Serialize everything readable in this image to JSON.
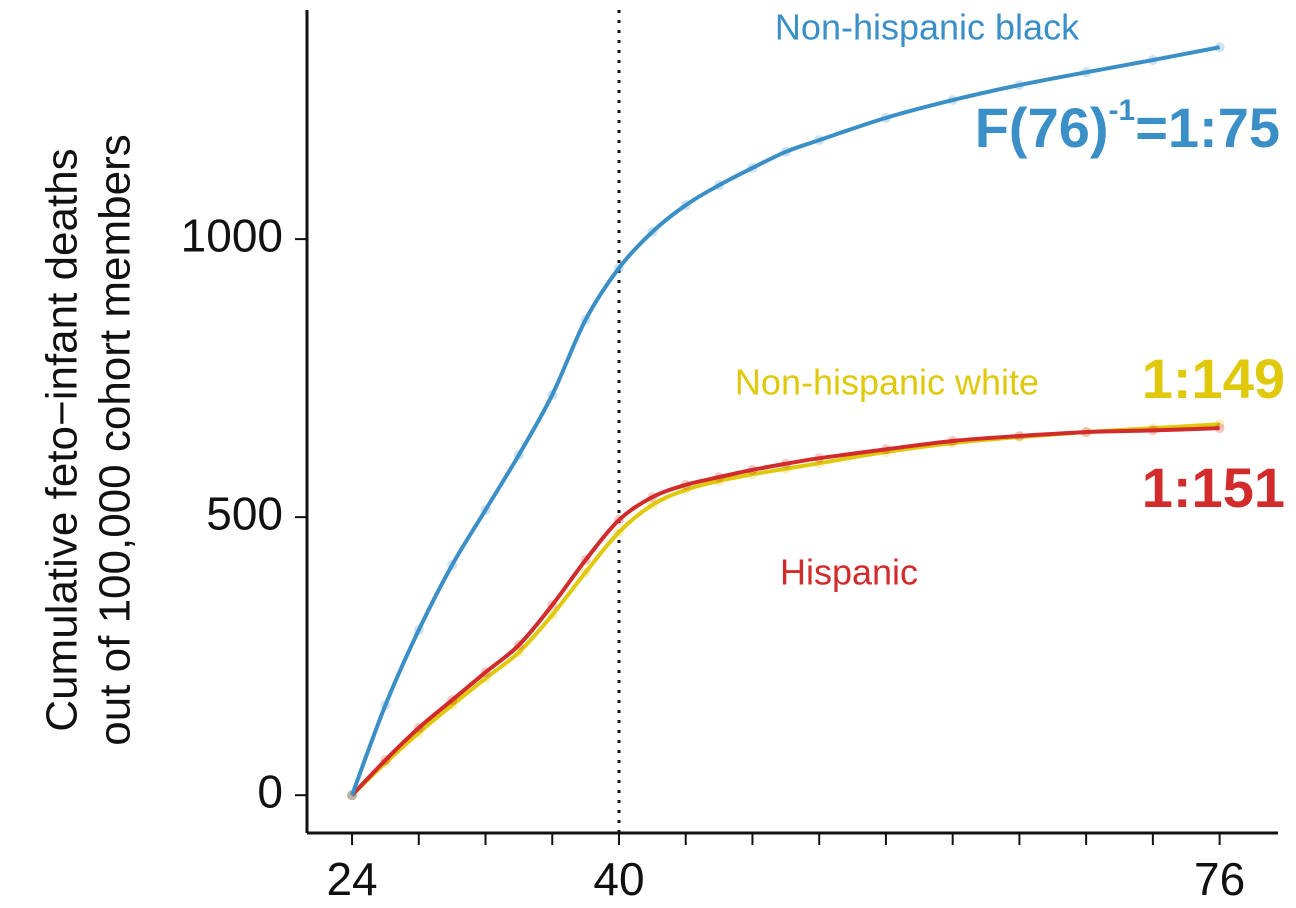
{
  "chart_data": {
    "type": "line",
    "y_label_lines": [
      "Cumulative feto−infant deaths",
      "out of 100,000 cohort members"
    ],
    "x": [
      24,
      26,
      28,
      30,
      32,
      34,
      36,
      38,
      40,
      42,
      44,
      46,
      48,
      50,
      52,
      56,
      60,
      64,
      68,
      72,
      76
    ],
    "series": [
      {
        "name": "Non-hispanic white",
        "color": "#e0c80a",
        "values": [
          0,
          58,
          112,
          162,
          210,
          257,
          324,
          401,
          473,
          522,
          549,
          565,
          577,
          587,
          597,
          617,
          633,
          644,
          653,
          660,
          667
        ],
        "ratio_label": "1:149"
      },
      {
        "name": "Hispanic",
        "color": "#d12b2b",
        "values": [
          0,
          63,
          121,
          171,
          221,
          270,
          342,
          423,
          495,
          536,
          558,
          572,
          585,
          596,
          606,
          622,
          637,
          646,
          653,
          656,
          660
        ],
        "ratio_label": "1:151"
      },
      {
        "name": "Non-hispanic black",
        "color": "#3a8fc7",
        "values": [
          0,
          162,
          297,
          414,
          513,
          612,
          720,
          855,
          948,
          1013,
          1061,
          1097,
          1128,
          1157,
          1178,
          1218,
          1250,
          1277,
          1300,
          1322,
          1345
        ],
        "ratio_prefix": "F(76)",
        "ratio_sup": "-1",
        "ratio_label": "=1:75"
      }
    ],
    "xlim": [
      21.3,
      79.5
    ],
    "ylim": [
      -68,
      1412
    ],
    "xticks": [
      24,
      40,
      76
    ],
    "xminor_ticks": [
      28,
      32,
      36,
      44,
      48,
      52,
      56,
      60,
      64,
      68,
      72
    ],
    "yticks": [
      0,
      500,
      1000
    ],
    "vline": 40,
    "grid": false
  }
}
